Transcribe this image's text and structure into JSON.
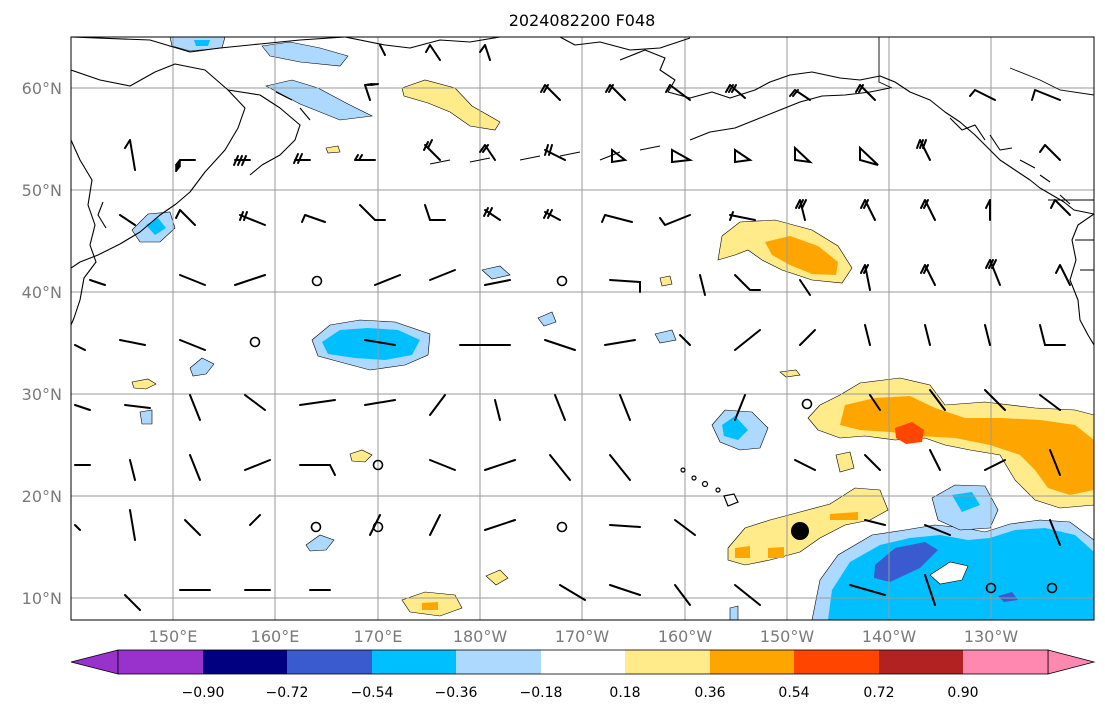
{
  "title": "2024082200 F048",
  "lat_labels": [
    "60°N",
    "50°N",
    "40°N",
    "30°N",
    "20°N",
    "10°N"
  ],
  "lon_labels": [
    "150°E",
    "160°E",
    "170°E",
    "180°W",
    "170°W",
    "160°W",
    "150°W",
    "140°W",
    "130°W"
  ],
  "colorbar": {
    "tick_labels": [
      "−0.90",
      "−0.72",
      "−0.54",
      "−0.36",
      "−0.18",
      "0.18",
      "0.36",
      "0.54",
      "0.72",
      "0.90"
    ],
    "levels": [
      -0.9,
      -0.72,
      -0.54,
      -0.36,
      -0.18,
      0.18,
      0.36,
      0.54,
      0.72,
      0.9
    ],
    "under_color": "#9932cc",
    "over_color": "#ff88b0",
    "colors": [
      "#000080",
      "#3a5bd0",
      "#00bfff",
      "#add8ff",
      "#ffffff",
      "#ffeb8a",
      "#ffa500",
      "#ff4500",
      "#b22222"
    ]
  },
  "map": {
    "extent_lon": [
      140,
      240
    ],
    "extent_lat": [
      8,
      65
    ],
    "marker_color": "#000000"
  }
}
